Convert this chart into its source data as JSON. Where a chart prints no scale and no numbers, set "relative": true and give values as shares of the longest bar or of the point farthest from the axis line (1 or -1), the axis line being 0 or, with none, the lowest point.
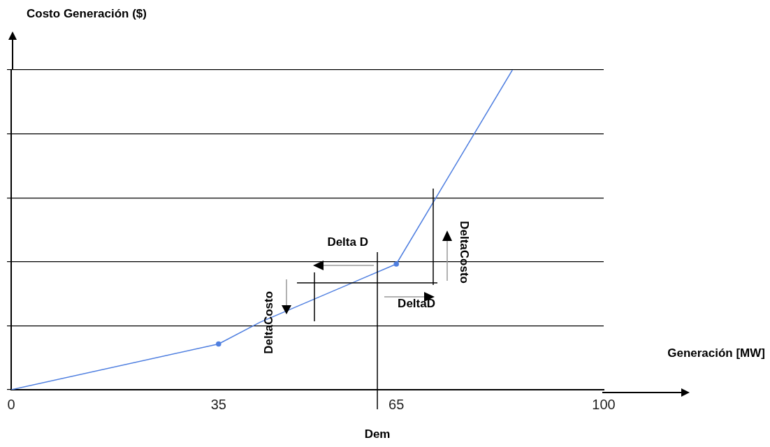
{
  "chart_data": {
    "type": "line",
    "xlabel": "Generación [MW]",
    "ylabel": "Costo Generación ($)",
    "relative": true,
    "xlim": [
      0,
      100
    ],
    "xticks": [
      0,
      35,
      65,
      100
    ],
    "grid": "y",
    "legend": false,
    "series": [
      {
        "color": "#4f7fe0",
        "marker": "none",
        "x": [
          0,
          35,
          42,
          65,
          84.6
        ],
        "values": [
          0,
          0.143,
          0.211,
          0.393,
          1
        ]
      },
      {
        "type": "scatter",
        "color": "#4f7fe0",
        "marker": "circle",
        "x": [
          35,
          65
        ],
        "values": [
          0.143,
          0.393
        ]
      }
    ],
    "ref_lines": [
      {
        "axis": "x",
        "value": 61.8,
        "label": "Dem",
        "color": "#000000"
      }
    ],
    "annotations": [
      "Delta D",
      "DeltaD",
      "DeltaCosto",
      "DeltaCosto"
    ]
  }
}
